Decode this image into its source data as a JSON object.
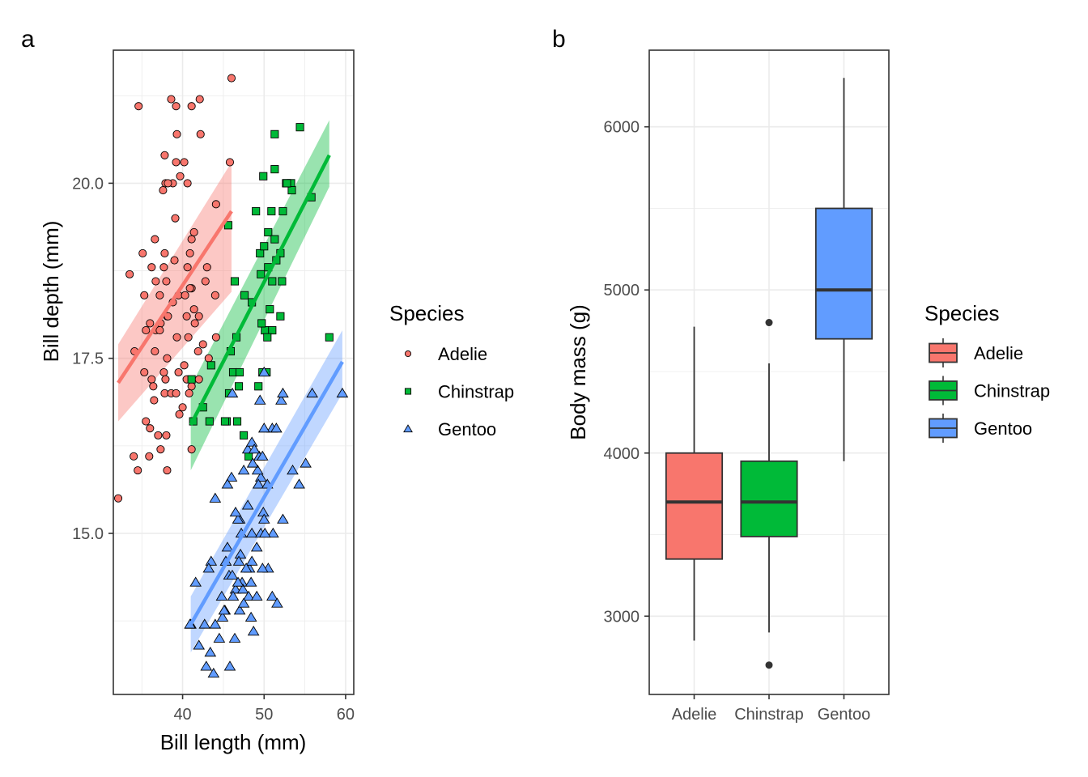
{
  "chart_data": [
    {
      "type": "scatter",
      "tag": "a",
      "xlabel": "Bill length (mm)",
      "ylabel": "Bill depth (mm)",
      "xlim": [
        31.5,
        61
      ],
      "ylim": [
        12.7,
        21.9
      ],
      "xticks": [
        40,
        50,
        60
      ],
      "xtick_labels": [
        "40",
        "50",
        "60"
      ],
      "yticks": [
        15.0,
        17.5,
        20.0
      ],
      "ytick_labels": [
        "15.0",
        "17.5",
        "20.0"
      ],
      "grid": true,
      "legend": {
        "title": "Species",
        "placement": "right"
      },
      "series": [
        {
          "name": "Adelie",
          "color": "#F8766D",
          "shape": "circle",
          "fit": {
            "x": [
              32.1,
              46.0
            ],
            "y": [
              17.15,
              19.6
            ],
            "ci_low": [
              16.6,
              18.45
            ],
            "ci_high": [
              17.7,
              20.3
            ]
          },
          "points": [
            [
              46.0,
              21.5
            ],
            [
              34.6,
              21.1
            ],
            [
              38.6,
              21.2
            ],
            [
              39.2,
              21.1
            ],
            [
              41.1,
              21.1
            ],
            [
              42.1,
              21.2
            ],
            [
              39.3,
              20.7
            ],
            [
              42.2,
              20.7
            ],
            [
              37.8,
              20.4
            ],
            [
              39.2,
              20.3
            ],
            [
              40.2,
              20.3
            ],
            [
              45.8,
              20.3
            ],
            [
              38.8,
              20.0
            ],
            [
              37.9,
              20.0
            ],
            [
              38.2,
              20.0
            ],
            [
              39.7,
              20.1
            ],
            [
              40.6,
              20.0
            ],
            [
              44.1,
              19.7
            ],
            [
              37.6,
              19.9
            ],
            [
              39.1,
              19.5
            ],
            [
              36.6,
              19.2
            ],
            [
              41.4,
              19.3
            ],
            [
              41.1,
              19.2
            ],
            [
              35.1,
              19.0
            ],
            [
              37.8,
              19.0
            ],
            [
              39.0,
              18.9
            ],
            [
              36.2,
              18.8
            ],
            [
              37.7,
              18.8
            ],
            [
              40.6,
              18.8
            ],
            [
              33.5,
              18.7
            ],
            [
              36.7,
              18.6
            ],
            [
              38.0,
              18.6
            ],
            [
              41.1,
              18.5
            ],
            [
              35.3,
              18.4
            ],
            [
              37.2,
              18.4
            ],
            [
              39.5,
              18.4
            ],
            [
              40.9,
              18.5
            ],
            [
              40.3,
              18.4
            ],
            [
              41.4,
              18.2
            ],
            [
              38.8,
              18.3
            ],
            [
              38.1,
              18.1
            ],
            [
              40.5,
              18.1
            ],
            [
              36.0,
              18.0
            ],
            [
              37.3,
              18.0
            ],
            [
              38.2,
              18.1
            ],
            [
              41.5,
              18.0
            ],
            [
              42.0,
              18.1
            ],
            [
              35.5,
              17.9
            ],
            [
              36.7,
              17.9
            ],
            [
              37.2,
              17.9
            ],
            [
              39.3,
              17.8
            ],
            [
              40.7,
              17.8
            ],
            [
              41.9,
              17.6
            ],
            [
              34.1,
              17.6
            ],
            [
              36.6,
              17.6
            ],
            [
              38.1,
              17.5
            ],
            [
              40.2,
              17.4
            ],
            [
              42.5,
              17.7
            ],
            [
              43.2,
              17.5
            ],
            [
              35.3,
              17.3
            ],
            [
              37.7,
              17.3
            ],
            [
              39.5,
              17.3
            ],
            [
              36.2,
              17.2
            ],
            [
              37.9,
              17.2
            ],
            [
              40.5,
              17.2
            ],
            [
              42.0,
              17.2
            ],
            [
              36.4,
              17.1
            ],
            [
              37.8,
              17.0
            ],
            [
              38.6,
              17.0
            ],
            [
              39.2,
              17.0
            ],
            [
              41.1,
              17.1
            ],
            [
              39.6,
              16.7
            ],
            [
              40.8,
              17.0
            ],
            [
              36.0,
              16.5
            ],
            [
              37.0,
              16.4
            ],
            [
              38.0,
              16.4
            ],
            [
              37.3,
              16.2
            ],
            [
              34.5,
              15.9
            ],
            [
              35.9,
              16.1
            ],
            [
              38.1,
              15.9
            ],
            [
              32.1,
              15.5
            ],
            [
              41.1,
              16.2
            ],
            [
              35.5,
              16.6
            ],
            [
              34.0,
              16.1
            ],
            [
              36.5,
              16.9
            ],
            [
              40.0,
              16.8
            ],
            [
              44.1,
              17.8
            ],
            [
              42.8,
              18.6
            ],
            [
              44.0,
              18.4
            ],
            [
              40.9,
              19.0
            ],
            [
              43.0,
              18.8
            ]
          ]
        },
        {
          "name": "Chinstrap",
          "color": "#00BA38",
          "shape": "square",
          "fit": {
            "x": [
              41.0,
              58.0
            ],
            "y": [
              16.55,
              20.4
            ],
            "ci_low": [
              15.9,
              19.95
            ],
            "ci_high": [
              17.1,
              20.9
            ]
          },
          "points": [
            [
              51.3,
              20.7
            ],
            [
              54.4,
              20.8
            ],
            [
              52.3,
              19.6
            ],
            [
              49.9,
              20.1
            ],
            [
              51.3,
              20.2
            ],
            [
              53.3,
              20.0
            ],
            [
              49.0,
              19.6
            ],
            [
              50.9,
              19.6
            ],
            [
              50.5,
              19.3
            ],
            [
              53.4,
              19.9
            ],
            [
              52.7,
              20.0
            ],
            [
              49.5,
              19.0
            ],
            [
              50.0,
              19.1
            ],
            [
              51.3,
              19.2
            ],
            [
              52.0,
              19.0
            ],
            [
              50.5,
              18.8
            ],
            [
              49.6,
              18.7
            ],
            [
              51.0,
              18.6
            ],
            [
              51.5,
              18.9
            ],
            [
              52.2,
              18.6
            ],
            [
              46.4,
              18.6
            ],
            [
              45.6,
              19.4
            ],
            [
              45.9,
              17.6
            ],
            [
              46.6,
              17.8
            ],
            [
              47.6,
              18.4
            ],
            [
              50.1,
              17.9
            ],
            [
              51.0,
              17.9
            ],
            [
              50.7,
              18.2
            ],
            [
              49.7,
              18.0
            ],
            [
              48.5,
              18.3
            ],
            [
              52.0,
              18.1
            ],
            [
              50.4,
              17.8
            ],
            [
              49.8,
              17.3
            ],
            [
              50.3,
              17.3
            ],
            [
              43.5,
              17.4
            ],
            [
              45.7,
              17.0
            ],
            [
              46.9,
              17.1
            ],
            [
              42.5,
              16.8
            ],
            [
              41.3,
              16.6
            ],
            [
              43.3,
              16.6
            ],
            [
              45.4,
              16.6
            ],
            [
              45.2,
              16.6
            ],
            [
              46.7,
              16.6
            ],
            [
              47.5,
              16.4
            ],
            [
              48.1,
              16.1
            ],
            [
              41.1,
              17.2
            ],
            [
              46.2,
              17.3
            ],
            [
              47.0,
              17.3
            ],
            [
              49.3,
              17.1
            ],
            [
              55.8,
              19.8
            ],
            [
              58.0,
              17.8
            ],
            [
              52.8,
              20.0
            ]
          ]
        },
        {
          "name": "Gentoo",
          "color": "#619CFF",
          "shape": "triangle",
          "fit": {
            "x": [
              41.0,
              59.6
            ],
            "y": [
              13.7,
              17.45
            ],
            "ci_low": [
              13.3,
              17.0
            ],
            "ci_high": [
              14.1,
              17.9
            ]
          },
          "points": [
            [
              50.0,
              17.3
            ],
            [
              46.1,
              17.0
            ],
            [
              52.1,
              16.9
            ],
            [
              52.3,
              17.0
            ],
            [
              55.9,
              17.0
            ],
            [
              59.6,
              17.0
            ],
            [
              49.5,
              16.9
            ],
            [
              48.0,
              16.2
            ],
            [
              49.6,
              15.8
            ],
            [
              51.0,
              16.5
            ],
            [
              51.5,
              16.5
            ],
            [
              50.0,
              16.5
            ],
            [
              48.5,
              16.3
            ],
            [
              49.4,
              16.1
            ],
            [
              49.2,
              15.9
            ],
            [
              47.5,
              15.9
            ],
            [
              55.1,
              16.0
            ],
            [
              48.8,
              16.2
            ],
            [
              49.8,
              16.1
            ],
            [
              49.3,
              15.7
            ],
            [
              46.0,
              15.8
            ],
            [
              45.5,
              15.7
            ],
            [
              44.0,
              15.5
            ],
            [
              53.5,
              15.9
            ],
            [
              54.3,
              15.7
            ],
            [
              47.0,
              15.2
            ],
            [
              48.0,
              15.4
            ],
            [
              49.9,
              15.3
            ],
            [
              52.3,
              15.2
            ],
            [
              46.8,
              15.2
            ],
            [
              47.2,
              15.0
            ],
            [
              45.5,
              14.8
            ],
            [
              43.5,
              14.6
            ],
            [
              45.3,
              14.6
            ],
            [
              45.7,
              14.4
            ],
            [
              46.1,
              14.4
            ],
            [
              47.3,
              14.3
            ],
            [
              48.2,
              14.5
            ],
            [
              50.5,
              14.5
            ],
            [
              46.5,
              14.2
            ],
            [
              47.4,
              14.2
            ],
            [
              48.4,
              14.3
            ],
            [
              48.1,
              14.1
            ],
            [
              51.0,
              14.1
            ],
            [
              44.8,
              14.1
            ],
            [
              46.2,
              14.1
            ],
            [
              49.1,
              14.1
            ],
            [
              51.6,
              14.0
            ],
            [
              47.0,
              13.9
            ],
            [
              45.2,
              13.9
            ],
            [
              44.0,
              13.7
            ],
            [
              41.6,
              14.3
            ],
            [
              48.4,
              13.8
            ],
            [
              48.7,
              13.6
            ],
            [
              44.5,
              13.5
            ],
            [
              46.4,
              13.5
            ],
            [
              42.0,
              13.4
            ],
            [
              43.4,
              13.3
            ],
            [
              41.0,
              13.7
            ],
            [
              43.8,
              13.0
            ],
            [
              45.8,
              13.1
            ],
            [
              40.9,
              13.7
            ],
            [
              45.3,
              14.6
            ],
            [
              46.5,
              15.3
            ],
            [
              47.1,
              14.7
            ],
            [
              48.5,
              15.0
            ],
            [
              49.6,
              15.0
            ],
            [
              51.1,
              15.0
            ],
            [
              50.1,
              15.0
            ],
            [
              48.5,
              14.6
            ],
            [
              49.1,
              14.8
            ],
            [
              42.7,
              13.7
            ],
            [
              44.9,
              13.8
            ],
            [
              46.8,
              14.3
            ],
            [
              47.5,
              14.0
            ],
            [
              47.8,
              14.5
            ],
            [
              50.0,
              15.2
            ],
            [
              43.2,
              14.5
            ],
            [
              42.9,
              13.1
            ],
            [
              45.1,
              13.9
            ],
            [
              50.4,
              15.7
            ],
            [
              46.9,
              14.6
            ],
            [
              48.6,
              16.0
            ],
            [
              49.8,
              14.5
            ]
          ]
        }
      ]
    },
    {
      "type": "box",
      "tag": "b",
      "xlabel": "",
      "ylabel": "Body mass (g)",
      "categories": [
        "Adelie",
        "Chinstrap",
        "Gentoo"
      ],
      "ylim": [
        2520,
        6470
      ],
      "yticks": [
        3000,
        4000,
        5000,
        6000
      ],
      "ytick_labels": [
        "3000",
        "4000",
        "5000",
        "6000"
      ],
      "grid": true,
      "legend": {
        "title": "Species",
        "placement": "right"
      },
      "series": [
        {
          "name": "Adelie",
          "color": "#F8766D",
          "min": 2850,
          "q1": 3350,
          "median": 3700,
          "q3": 4000,
          "max": 4775,
          "outliers": []
        },
        {
          "name": "Chinstrap",
          "color": "#00BA38",
          "min": 2900,
          "q1": 3488,
          "median": 3700,
          "q3": 3950,
          "max": 4550,
          "outliers": [
            4800,
            2700
          ]
        },
        {
          "name": "Gentoo",
          "color": "#619CFF",
          "min": 3950,
          "q1": 4700,
          "median": 5000,
          "q3": 5500,
          "max": 6300,
          "outliers": []
        }
      ]
    }
  ]
}
